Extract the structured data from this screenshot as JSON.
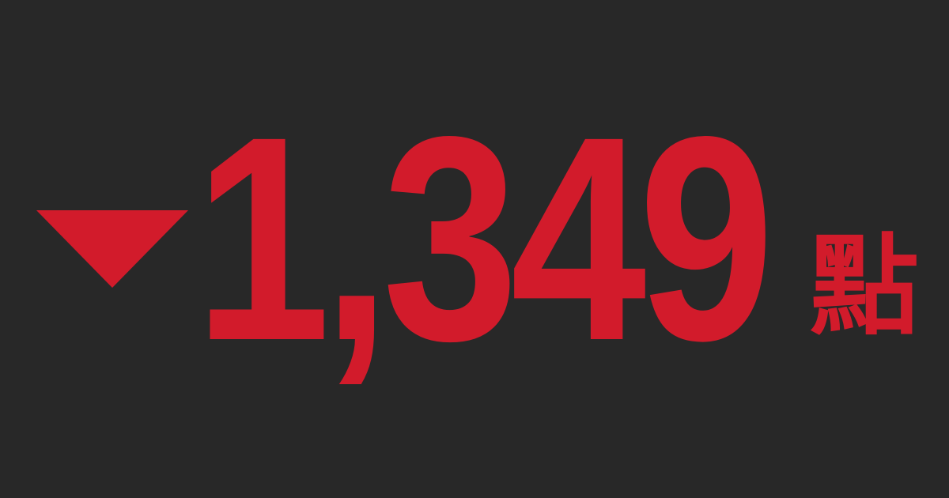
{
  "change": {
    "direction_icon": "down-triangle-icon",
    "value": "1,349",
    "unit": "點"
  },
  "colors": {
    "background": "#282828",
    "accent": "#d21b2b"
  }
}
